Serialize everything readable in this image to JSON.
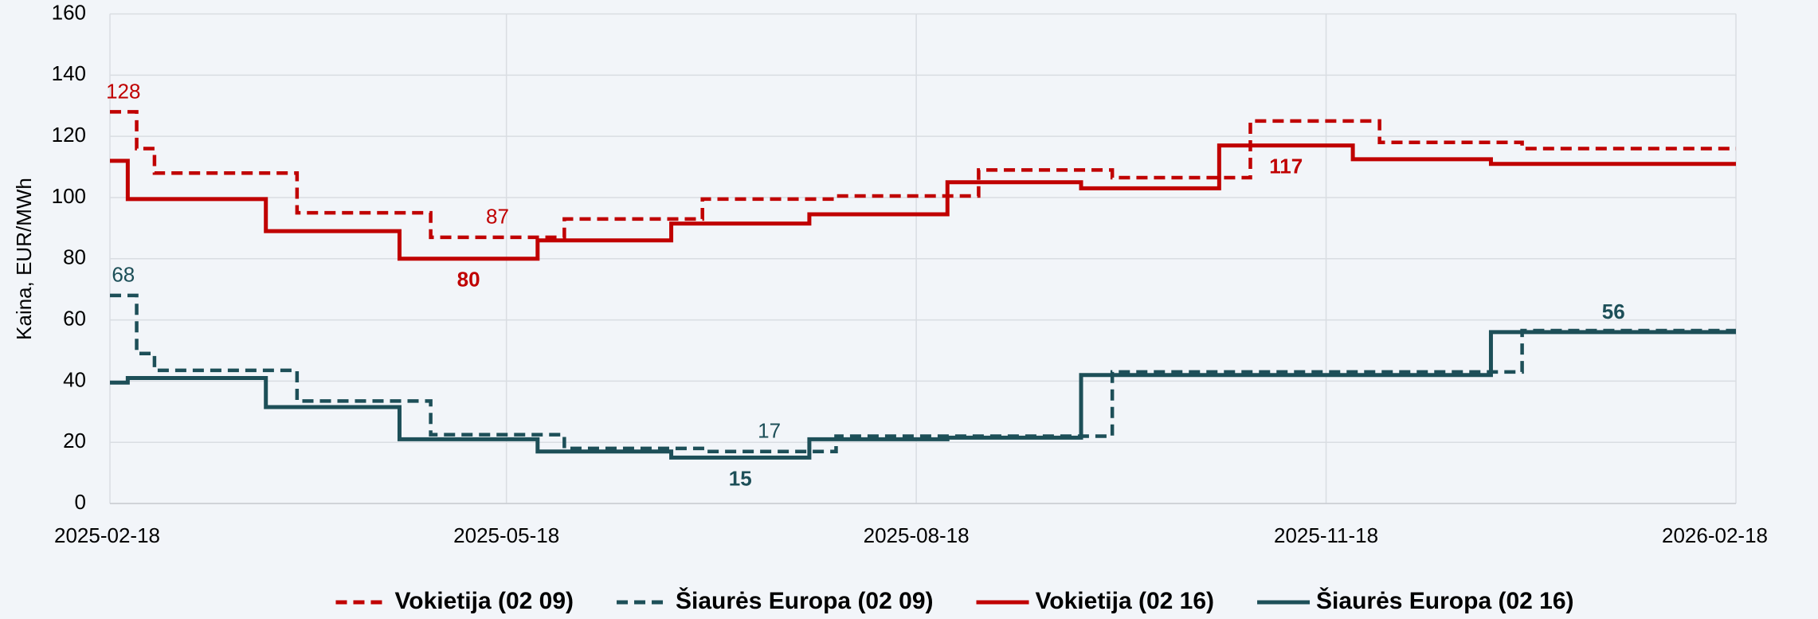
{
  "chart_data": {
    "type": "step",
    "ylabel": "Kaina, EUR/MWh",
    "xlim": [
      "2025-02-18",
      "2026-02-18"
    ],
    "xticks": [
      "2025-02-18",
      "2025-05-18",
      "2025-08-18",
      "2025-11-18",
      "2026-02-18"
    ],
    "ylim": [
      0,
      160
    ],
    "yticks": [
      0,
      20,
      40,
      60,
      80,
      100,
      120,
      140,
      160
    ],
    "grid": true,
    "legend": "bottom",
    "series": [
      {
        "name": "Vokietija (02 09)",
        "color": "#c00000",
        "style": "dashed",
        "x": [
          "2025-02-18",
          "2025-02-24",
          "2025-02-28",
          "2025-04-01",
          "2025-05-01",
          "2025-05-31",
          "2025-07-01",
          "2025-07-31",
          "2025-09-01",
          "2025-10-01",
          "2025-11-01",
          "2025-11-30",
          "2026-01-01"
        ],
        "values": [
          128,
          116,
          108,
          95,
          87,
          93,
          99.5,
          100.5,
          109,
          106.5,
          125,
          118,
          116
        ],
        "value_labels": [
          "128",
          null,
          null,
          null,
          "87",
          null,
          null,
          null,
          null,
          null,
          null,
          null,
          null
        ]
      },
      {
        "name": "Šiaurės Europa (02 09)",
        "color": "#1d4f58",
        "style": "dashed",
        "x": [
          "2025-02-18",
          "2025-02-24",
          "2025-02-28",
          "2025-04-01",
          "2025-05-01",
          "2025-05-31",
          "2025-07-01",
          "2025-07-31",
          "2025-10-01",
          "2026-01-01"
        ],
        "values": [
          68,
          49,
          43.5,
          33.5,
          22.5,
          18,
          17,
          22,
          43,
          56.5
        ],
        "value_labels": [
          "68",
          null,
          null,
          null,
          null,
          null,
          "17",
          null,
          null,
          null
        ]
      },
      {
        "name": "Vokietija (02 16)",
        "color": "#c00000",
        "style": "solid",
        "x": [
          "2025-02-18",
          "2025-02-22",
          "2025-03-25",
          "2025-04-24",
          "2025-05-25",
          "2025-06-24",
          "2025-07-25",
          "2025-08-25",
          "2025-09-24",
          "2025-10-25",
          "2025-11-24",
          "2025-12-25"
        ],
        "values": [
          112,
          99.5,
          89,
          80,
          86,
          91.5,
          94.5,
          105,
          103,
          117,
          112.5,
          111
        ],
        "value_labels": [
          null,
          null,
          null,
          "80",
          null,
          null,
          null,
          null,
          null,
          "117",
          null,
          null
        ]
      },
      {
        "name": "Šiaurės Europa (02 16)",
        "color": "#1d4f58",
        "style": "solid",
        "x": [
          "2025-02-18",
          "2025-02-22",
          "2025-03-25",
          "2025-04-24",
          "2025-05-25",
          "2025-06-24",
          "2025-07-25",
          "2025-08-25",
          "2025-09-24",
          "2025-12-25"
        ],
        "values": [
          39.5,
          41,
          31.5,
          21,
          17,
          15,
          21,
          21.5,
          42,
          56
        ],
        "value_labels": [
          null,
          null,
          null,
          null,
          null,
          "15",
          null,
          null,
          null,
          "56"
        ]
      }
    ]
  }
}
